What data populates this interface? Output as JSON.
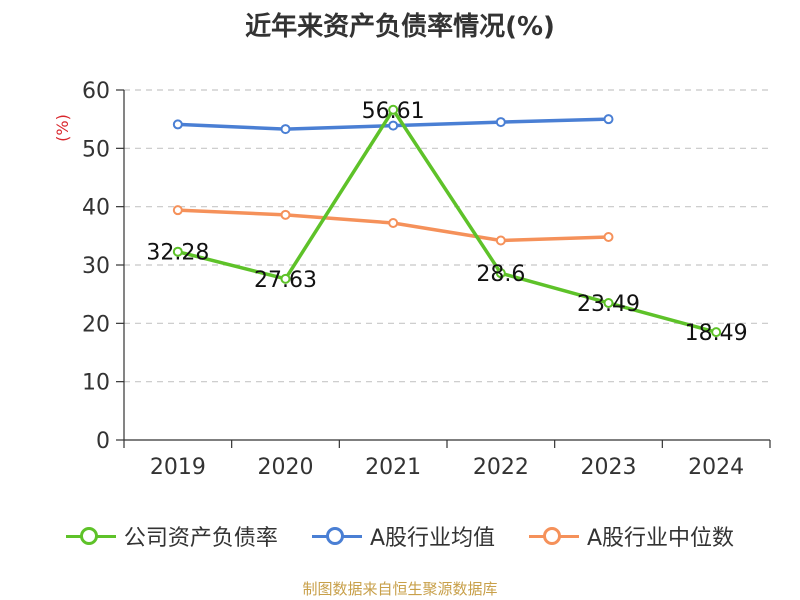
{
  "chart_data": {
    "type": "line",
    "title": "近年来资产负债率情况(%)",
    "ylabel": "(%)",
    "xlabel": "",
    "categories": [
      "2019",
      "2020",
      "2021",
      "2022",
      "2023",
      "2024"
    ],
    "ylim": [
      0,
      60
    ],
    "yticks": [
      0,
      10,
      20,
      30,
      40,
      50,
      60
    ],
    "grid": true,
    "legend_position": "bottom",
    "series": [
      {
        "name": "公司资产负债率",
        "color": "#5ec229",
        "values": [
          32.28,
          27.63,
          56.61,
          28.6,
          23.49,
          18.49
        ],
        "labels": [
          "32.28",
          "27.63",
          "56.61",
          "28.6",
          "23.49",
          "18.49"
        ]
      },
      {
        "name": "A股行业均值",
        "color": "#4a7fd4",
        "values": [
          54.1,
          53.3,
          53.9,
          54.5,
          55.0,
          null
        ]
      },
      {
        "name": "A股行业中位数",
        "color": "#f5915a",
        "values": [
          39.4,
          38.6,
          37.2,
          34.2,
          34.8,
          null
        ]
      }
    ]
  },
  "source_text": "制图数据来自恒生聚源数据库"
}
